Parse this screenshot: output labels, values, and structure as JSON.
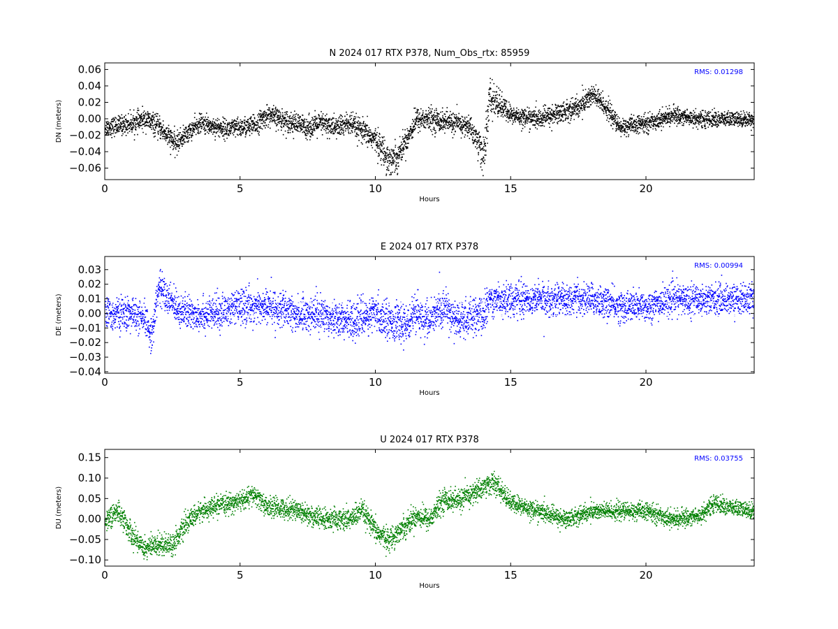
{
  "colors": {
    "N": "#000000",
    "E": "#0000ff",
    "U": "#008000",
    "E_guides": "#ffffff"
  },
  "chart_data": [
    {
      "type": "scatter",
      "title": "N 2024 017 RTX  P378, Num_Obs_rtx: 85959",
      "xlabel": "Hours",
      "ylabel": "DN (meters)",
      "rms_label": "RMS:  0.01298",
      "xlim": [
        0,
        24
      ],
      "ylim": [
        -0.074,
        0.068
      ],
      "xticks": [
        0,
        5,
        10,
        15,
        20
      ],
      "xtick_labels": [
        "0",
        "5",
        "10",
        "15",
        "20"
      ],
      "yticks": [
        -0.06,
        -0.04,
        -0.02,
        0.0,
        0.02,
        0.04,
        0.06
      ],
      "ytick_labels": [
        "−0.06",
        "−0.04",
        "−0.02",
        "0.00",
        "0.02",
        "0.04",
        "0.06"
      ],
      "color": "#000000",
      "trend": {
        "x": [
          0,
          1,
          1.5,
          2,
          2.6,
          3,
          3.5,
          4.5,
          5.5,
          6,
          6.5,
          7,
          7.5,
          8,
          8.5,
          9,
          9.5,
          10,
          10.5,
          10.8,
          11.2,
          11.5,
          12,
          13,
          13.5,
          13.8,
          14,
          14.2,
          14.5,
          15,
          16,
          17,
          17.5,
          18,
          18.5,
          19,
          20,
          21,
          22,
          23,
          24
        ],
        "y": [
          -0.01,
          -0.005,
          0.0,
          -0.01,
          -0.03,
          -0.018,
          -0.005,
          -0.012,
          -0.008,
          0.005,
          0.0,
          -0.005,
          -0.01,
          -0.005,
          -0.01,
          -0.005,
          -0.015,
          -0.025,
          -0.05,
          -0.045,
          -0.02,
          0.0,
          0.0,
          -0.005,
          -0.01,
          -0.03,
          -0.045,
          0.025,
          0.02,
          0.005,
          0.0,
          0.01,
          0.015,
          0.03,
          0.015,
          -0.01,
          -0.005,
          0.005,
          0.0,
          0.0,
          0.0
        ]
      },
      "spread": {
        "x": [
          0,
          2.5,
          3,
          10,
          10.5,
          11,
          13.5,
          14,
          14.5,
          15,
          17,
          18,
          19,
          24
        ],
        "y": [
          0.012,
          0.015,
          0.012,
          0.016,
          0.022,
          0.016,
          0.014,
          0.028,
          0.02,
          0.012,
          0.014,
          0.016,
          0.012,
          0.01
        ]
      }
    },
    {
      "type": "scatter",
      "title": "E 2024 017 RTX  P378",
      "xlabel": "Hours",
      "ylabel": "DE (meters)",
      "rms_label": "RMS:  0.00994",
      "xlim": [
        0,
        24
      ],
      "ylim": [
        -0.041,
        0.039
      ],
      "xticks": [
        0,
        5,
        10,
        15,
        20
      ],
      "xtick_labels": [
        "0",
        "5",
        "10",
        "15",
        "20"
      ],
      "yticks": [
        -0.04,
        -0.03,
        -0.02,
        -0.01,
        0.0,
        0.01,
        0.02,
        0.03
      ],
      "ytick_labels": [
        "−0.04",
        "−0.03",
        "−0.02",
        "−0.01",
        "0.00",
        "0.01",
        "0.02",
        "0.03"
      ],
      "color": "#0000ff",
      "guide_lines": [
        0.0075,
        -0.0015
      ],
      "trend": {
        "x": [
          0,
          1,
          1.5,
          1.7,
          2,
          2.3,
          3,
          4,
          5,
          6,
          7,
          8,
          9,
          10,
          11,
          11.5,
          12,
          12.5,
          13,
          14,
          14.2,
          15,
          16,
          17,
          18,
          19,
          20,
          21,
          22,
          23,
          24
        ],
        "y": [
          0.0,
          0.0,
          -0.005,
          -0.015,
          0.02,
          0.01,
          0.0,
          0.0,
          0.005,
          0.005,
          0.0,
          0.0,
          -0.005,
          0.0,
          -0.008,
          0.0,
          -0.005,
          0.005,
          -0.005,
          0.0,
          0.01,
          0.01,
          0.01,
          0.01,
          0.01,
          0.005,
          0.005,
          0.01,
          0.01,
          0.01,
          0.01
        ]
      },
      "spread": {
        "x": [
          0,
          14,
          14.2,
          24
        ],
        "y": [
          0.012,
          0.014,
          0.012,
          0.011
        ]
      }
    },
    {
      "type": "scatter",
      "title": "U 2024 017 RTX  P378",
      "xlabel": "Hours",
      "ylabel": "DU (meters)",
      "rms_label": "RMS:  0.03755",
      "xlim": [
        0,
        24
      ],
      "ylim": [
        -0.115,
        0.17
      ],
      "xticks": [
        0,
        5,
        10,
        15,
        20
      ],
      "xtick_labels": [
        "0",
        "5",
        "10",
        "15",
        "20"
      ],
      "yticks": [
        -0.1,
        -0.05,
        0.0,
        0.05,
        0.1,
        0.15
      ],
      "ytick_labels": [
        "−0.10",
        "−0.05",
        "0.00",
        "0.05",
        "0.10",
        "0.15"
      ],
      "color": "#008000",
      "trend": {
        "x": [
          0,
          0.5,
          1,
          1.5,
          2,
          2.5,
          3,
          3.5,
          4,
          5,
          5.5,
          6,
          7,
          8,
          9,
          9.5,
          10,
          10.5,
          11,
          11.5,
          12,
          12.5,
          13,
          13.5,
          14,
          14.3,
          14.5,
          15,
          16,
          17,
          18,
          19,
          20,
          21,
          22,
          22.5,
          23,
          24
        ],
        "y": [
          0.0,
          0.02,
          -0.04,
          -0.07,
          -0.06,
          -0.06,
          -0.01,
          0.02,
          0.03,
          0.045,
          0.06,
          0.03,
          0.025,
          0.0,
          0.0,
          0.02,
          -0.03,
          -0.05,
          -0.02,
          0.01,
          0.0,
          0.05,
          0.045,
          0.06,
          0.08,
          0.09,
          0.08,
          0.04,
          0.02,
          0.0,
          0.02,
          0.02,
          0.02,
          0.0,
          0.01,
          0.04,
          0.03,
          0.02
        ]
      },
      "spread": {
        "x": [
          0,
          2,
          4,
          10,
          14,
          15,
          24
        ],
        "y": [
          0.03,
          0.03,
          0.025,
          0.03,
          0.03,
          0.025,
          0.022
        ]
      }
    }
  ]
}
